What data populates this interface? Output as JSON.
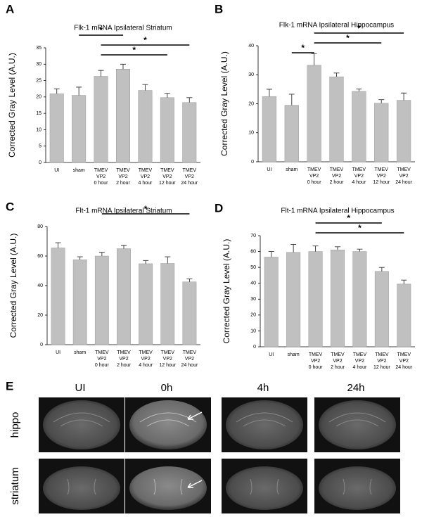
{
  "chart_data": [
    {
      "type": "bar",
      "panel": "A",
      "title": "Flk-1 mRNA Ipsilateral Striatum",
      "y_label": "Corrected Gray Level (A.U.)",
      "categories": [
        [
          "UI"
        ],
        [
          "sham"
        ],
        [
          "TMEV",
          "VP2",
          "0 hour"
        ],
        [
          "TMEV",
          "VP2",
          "2 hour"
        ],
        [
          "TMEV",
          "VP2",
          "4 hour"
        ],
        [
          "TMEV",
          "VP2",
          "12 hour"
        ],
        [
          "TMEV",
          "VP2",
          "24 hour"
        ]
      ],
      "values": [
        21,
        20.5,
        26.3,
        28.5,
        22,
        19.8,
        18.3
      ],
      "errors": [
        1.5,
        2.5,
        1.8,
        1.5,
        1.8,
        1.3,
        1.5
      ],
      "color": "#c0c0c0",
      "ylim": [
        0,
        35
      ],
      "yticks": [
        0,
        5,
        10,
        15,
        20,
        25,
        30,
        35
      ],
      "significance": [
        {
          "from": 1,
          "to": 3,
          "label": "*"
        },
        {
          "from": 2,
          "to": 6,
          "label": "*"
        },
        {
          "from": 2,
          "to": 5,
          "label": "*"
        }
      ]
    },
    {
      "type": "bar",
      "panel": "B",
      "title": "Flk-1 mRNA Ipsilateral Hippocampus",
      "y_label": "Corrected Gray Level (A.U.)",
      "categories": [
        [
          "UI"
        ],
        [
          "sham"
        ],
        [
          "TMEV",
          "VP2",
          "0 hour"
        ],
        [
          "TMEV",
          "VP2",
          "2 hour"
        ],
        [
          "TMEV",
          "VP2",
          "4 hour"
        ],
        [
          "TMEV",
          "VP2",
          "12 hour"
        ],
        [
          "TMEV",
          "VP2",
          "24 hour"
        ]
      ],
      "values": [
        22.5,
        19.5,
        33.3,
        29.3,
        24.3,
        20.2,
        21.2
      ],
      "errors": [
        2.5,
        3.8,
        4,
        1.3,
        0.8,
        1.2,
        2.5
      ],
      "color": "#c0c0c0",
      "ylim": [
        0,
        40
      ],
      "yticks": [
        0,
        10,
        20,
        30,
        40
      ],
      "significance": [
        {
          "from": 2,
          "to": 6,
          "label": "*"
        },
        {
          "from": 2,
          "to": 5,
          "label": "*"
        },
        {
          "from": 1,
          "to": 2,
          "label": "*"
        }
      ]
    },
    {
      "type": "bar",
      "panel": "C",
      "title": "Flt-1 mRNA Ipsilateral Striatum",
      "y_label": "Corrected Gray Level (A.U.)",
      "categories": [
        [
          "UI"
        ],
        [
          "sham"
        ],
        [
          "TMEV",
          "VP2",
          "0 hour"
        ],
        [
          "TMEV",
          "VP2",
          "2 hour"
        ],
        [
          "TMEV",
          "VP2",
          "4 hour"
        ],
        [
          "TMEV",
          "VP2",
          "12 hour"
        ],
        [
          "TMEV",
          "VP2",
          "24 hour"
        ]
      ],
      "values": [
        65.5,
        57.5,
        60,
        65,
        54.8,
        55,
        42.5
      ],
      "errors": [
        3.5,
        2,
        2.5,
        2.2,
        2.2,
        4.5,
        2
      ],
      "color": "#c0c0c0",
      "ylim": [
        0,
        80
      ],
      "yticks": [
        0,
        20,
        40,
        60,
        80
      ],
      "significance": [
        {
          "from": 2,
          "to": 6,
          "label": "*"
        }
      ]
    },
    {
      "type": "bar",
      "panel": "D",
      "title": "Flt-1 mRNA Ipsilateral Hippocampus",
      "y_label": "Corrected Gray Level (A.U.)",
      "categories": [
        [
          "UI"
        ],
        [
          "sham"
        ],
        [
          "TMEV",
          "VP2",
          "0 hour"
        ],
        [
          "TMEV",
          "VP2",
          "2 hour"
        ],
        [
          "TMEV",
          "VP2",
          "4 hour"
        ],
        [
          "TMEV",
          "VP2",
          "12 hour"
        ],
        [
          "TMEV",
          "VP2",
          "24 hour"
        ]
      ],
      "values": [
        56.5,
        59.5,
        60,
        61,
        60,
        47.5,
        39.5
      ],
      "errors": [
        3.5,
        5,
        3.5,
        2,
        1.5,
        2.5,
        2.5
      ],
      "color": "#c0c0c0",
      "ylim": [
        0,
        70
      ],
      "yticks": [
        0,
        10,
        20,
        30,
        40,
        50,
        60,
        70
      ],
      "significance": [
        {
          "from": 2,
          "to": 5,
          "label": "*"
        },
        {
          "from": 2,
          "to": 6,
          "label": "*"
        }
      ]
    }
  ],
  "panel_e": {
    "label": "E",
    "columns": [
      "UI",
      "0h",
      "4h",
      "24h"
    ],
    "rows": [
      "hippo",
      "striatum"
    ]
  }
}
